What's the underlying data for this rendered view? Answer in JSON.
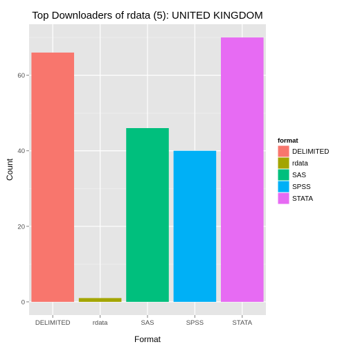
{
  "chart_data": {
    "type": "bar",
    "title": "Top Downloaders of rdata (5):  UNITED KINGDOM",
    "xlabel": "Format",
    "ylabel": "Count",
    "categories": [
      "DELIMITED",
      "rdata",
      "SAS",
      "SPSS",
      "STATA"
    ],
    "values": [
      66,
      1,
      46,
      40,
      70
    ],
    "colors": [
      "#F8766D",
      "#A3A500",
      "#00BF7D",
      "#00B0F6",
      "#E76BF3"
    ],
    "ylim": [
      -3.5,
      73.5
    ],
    "yticks": [
      0,
      20,
      40,
      60
    ],
    "grid": true,
    "legend": {
      "title": "format",
      "position": "right",
      "entries": [
        "DELIMITED",
        "rdata",
        "SAS",
        "SPSS",
        "STATA"
      ]
    }
  }
}
